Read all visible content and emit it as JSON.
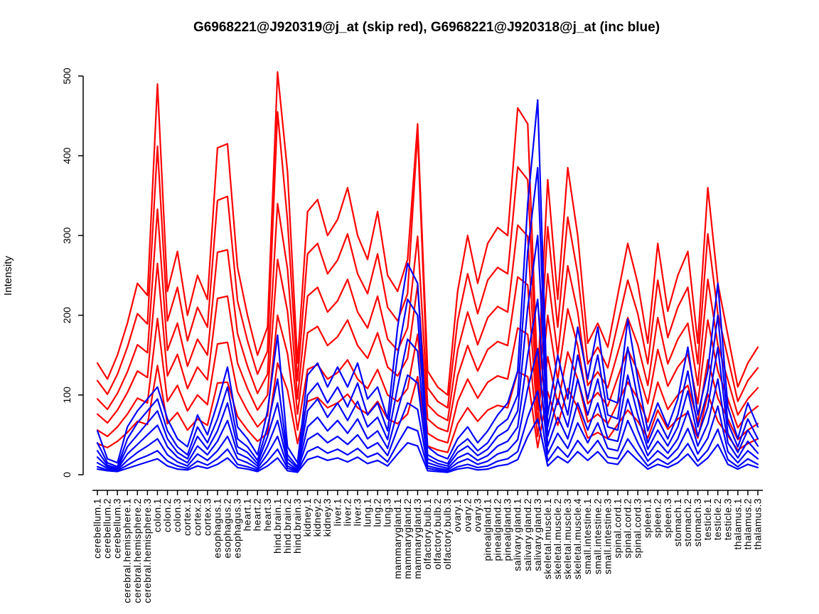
{
  "page": {
    "background": "#ffffff"
  },
  "chart_data": {
    "type": "line",
    "title": "G6968221@J920319@j_at (skip red), G6968221@J920318@j_at (inc blue)",
    "xlabel": "",
    "ylabel": "Intensity",
    "ylim": [
      0,
      500
    ],
    "yticks": [
      0,
      100,
      200,
      300,
      400,
      500
    ],
    "grid": false,
    "legend_position": "none",
    "series_colors": {
      "skip": "#ff0000",
      "inc": "#0000ff"
    },
    "categories": [
      "cerebellum.1",
      "cerebellum.2",
      "cerebellum.3",
      "cerebral.hemisphere.1",
      "cerebral.hemisphere.2",
      "cerebral.hemisphere.3",
      "colon.1",
      "colon.2",
      "colon.3",
      "cortex.1",
      "cortex.2",
      "cortex.3",
      "esophagus.1",
      "esophagus.2",
      "esophagus.3",
      "heart.1",
      "heart.2",
      "heart.3",
      "hind.brain.1",
      "hind.brain.2",
      "hind.brain.3",
      "kidney.1",
      "kidney.2",
      "kidney.3",
      "liver.1",
      "liver.2",
      "liver.3",
      "lung.1",
      "lung.2",
      "lung.3",
      "mammarygland.1",
      "mammarygland.2",
      "mammarygland.3",
      "olfactory.bulb.1",
      "olfactory.bulb.2",
      "olfactory.bulb.3",
      "ovary.1",
      "ovary.2",
      "ovary.3",
      "pinealgland.1",
      "pinealgland.2",
      "pinealgland.3",
      "salivary.gland.1",
      "salivary.gland.2",
      "salivary.gland.3",
      "skeletal.muscle.1",
      "skeletal.muscle.2",
      "skeletal.muscle.3",
      "skeletal.muscle.4",
      "small.intestine.1",
      "small.intestine.2",
      "small.intestine.3",
      "spinal.cord.1",
      "spinal.cord.2",
      "spinal.cord.3",
      "spleen.1",
      "spleen.2",
      "spleen.3",
      "stomach.1",
      "stomach.2",
      "stomach.3",
      "testicle.1",
      "testicle.2",
      "testicle.3",
      "thalamus.1",
      "thalamus.2",
      "thalamus.3"
    ],
    "series": [
      {
        "name": "skip-red-1",
        "group": "G6968221@J920319@j_at (skip)",
        "color": "#ff0000",
        "values": [
          140,
          120,
          150,
          190,
          240,
          225,
          490,
          230,
          280,
          200,
          250,
          220,
          410,
          415,
          260,
          200,
          150,
          185,
          505,
          380,
          140,
          330,
          345,
          300,
          320,
          360,
          300,
          270,
          330,
          250,
          230,
          270,
          440,
          130,
          110,
          100,
          230,
          300,
          240,
          290,
          310,
          300,
          460,
          440,
          120,
          370,
          220,
          385,
          300,
          165,
          190,
          160,
          225,
          290,
          240,
          165,
          290,
          205,
          250,
          280,
          165,
          360,
          240,
          175,
          110,
          140,
          160
        ]
      },
      {
        "name": "skip-red-2",
        "group": "G6968221@J920319@j_at (skip)",
        "color": "#ff0000",
        "values": [
          118,
          101,
          126,
          160,
          202,
          189,
          412,
          193,
          235,
          168,
          210,
          185,
          344,
          349,
          218,
          168,
          126,
          155,
          455,
          319,
          118,
          277,
          290,
          252,
          269,
          302,
          252,
          227,
          277,
          210,
          193,
          227,
          430,
          109,
          92,
          84,
          193,
          252,
          202,
          244,
          260,
          252,
          386,
          370,
          101,
          311,
          185,
          323,
          252,
          139,
          160,
          134,
          189,
          244,
          202,
          139,
          244,
          172,
          210,
          235,
          139,
          302,
          202,
          147,
          92,
          118,
          134
        ]
      },
      {
        "name": "skip-red-3",
        "group": "G6968221@J920319@j_at (skip)",
        "color": "#ff0000",
        "values": [
          95,
          82,
          102,
          129,
          163,
          153,
          333,
          156,
          190,
          136,
          170,
          150,
          279,
          282,
          177,
          136,
          102,
          126,
          340,
          258,
          95,
          224,
          235,
          204,
          218,
          245,
          204,
          184,
          224,
          170,
          156,
          184,
          299,
          88,
          75,
          68,
          156,
          204,
          163,
          197,
          211,
          204,
          313,
          299,
          82,
          252,
          150,
          262,
          204,
          112,
          129,
          109,
          153,
          197,
          163,
          112,
          197,
          139,
          170,
          190,
          112,
          245,
          163,
          119,
          75,
          95,
          109
        ]
      },
      {
        "name": "skip-red-4",
        "group": "G6968221@J920319@j_at (skip)",
        "color": "#ff0000",
        "values": [
          76,
          65,
          81,
          103,
          130,
          122,
          265,
          124,
          151,
          108,
          135,
          119,
          221,
          224,
          140,
          108,
          81,
          100,
          270,
          205,
          76,
          178,
          186,
          162,
          173,
          194,
          162,
          146,
          178,
          135,
          124,
          146,
          238,
          70,
          59,
          54,
          124,
          162,
          130,
          157,
          167,
          162,
          248,
          238,
          65,
          200,
          119,
          208,
          162,
          89,
          103,
          86,
          122,
          157,
          130,
          89,
          157,
          111,
          135,
          151,
          89,
          194,
          130,
          95,
          59,
          76,
          86
        ]
      },
      {
        "name": "skip-red-5",
        "group": "G6968221@J920319@j_at (skip)",
        "color": "#ff0000",
        "values": [
          56,
          48,
          60,
          76,
          96,
          90,
          196,
          92,
          112,
          80,
          100,
          88,
          164,
          166,
          104,
          80,
          60,
          74,
          200,
          152,
          56,
          132,
          138,
          120,
          128,
          144,
          120,
          108,
          132,
          100,
          92,
          108,
          176,
          52,
          44,
          40,
          92,
          120,
          96,
          116,
          124,
          120,
          184,
          176,
          48,
          148,
          88,
          154,
          120,
          66,
          76,
          64,
          90,
          116,
          96,
          66,
          116,
          82,
          100,
          112,
          66,
          144,
          96,
          70,
          44,
          56,
          64
        ]
      },
      {
        "name": "skip-red-6",
        "group": "G6968221@J920319@j_at (skip)",
        "color": "#ff0000",
        "values": [
          39,
          34,
          42,
          53,
          67,
          63,
          137,
          64,
          78,
          56,
          70,
          62,
          115,
          116,
          73,
          56,
          42,
          52,
          140,
          106,
          39,
          92,
          97,
          84,
          90,
          101,
          84,
          76,
          92,
          70,
          64,
          76,
          123,
          36,
          31,
          28,
          64,
          84,
          67,
          81,
          87,
          84,
          129,
          123,
          34,
          104,
          62,
          108,
          84,
          46,
          53,
          45,
          63,
          81,
          67,
          46,
          81,
          57,
          70,
          78,
          46,
          101,
          67,
          49,
          31,
          39,
          45
        ]
      },
      {
        "name": "inc-blue-1",
        "group": "G6968221@J920318@j_at (inc)",
        "color": "#0000ff",
        "values": [
          55,
          20,
          15,
          60,
          80,
          95,
          110,
          70,
          45,
          35,
          75,
          50,
          90,
          135,
          60,
          45,
          25,
          80,
          175,
          35,
          15,
          125,
          140,
          110,
          135,
          110,
          140,
          95,
          110,
          70,
          185,
          265,
          240,
          35,
          25,
          20,
          45,
          60,
          40,
          55,
          75,
          90,
          130,
          340,
          470,
          75,
          150,
          95,
          185,
          120,
          185,
          95,
          90,
          195,
          120,
          55,
          90,
          60,
          95,
          160,
          75,
          130,
          240,
          85,
          45,
          90,
          60
        ]
      },
      {
        "name": "inc-blue-2",
        "group": "G6968221@J920318@j_at (inc)",
        "color": "#0000ff",
        "values": [
          40,
          15,
          10,
          45,
          65,
          80,
          95,
          55,
          35,
          25,
          60,
          40,
          70,
          110,
          45,
          35,
          18,
          60,
          120,
          25,
          10,
          100,
          115,
          90,
          110,
          85,
          115,
          75,
          90,
          55,
          150,
          220,
          200,
          25,
          18,
          14,
          35,
          45,
          30,
          40,
          60,
          70,
          100,
          280,
          385,
          60,
          120,
          75,
          150,
          95,
          150,
          75,
          70,
          160,
          95,
          40,
          70,
          45,
          75,
          130,
          60,
          105,
          200,
          65,
          35,
          70,
          45
        ]
      },
      {
        "name": "inc-blue-3",
        "group": "G6968221@J920318@j_at (inc)",
        "color": "#0000ff",
        "values": [
          30,
          12,
          8,
          35,
          50,
          65,
          80,
          45,
          28,
          20,
          48,
          32,
          55,
          90,
          35,
          28,
          14,
          48,
          90,
          20,
          8,
          80,
          95,
          72,
          90,
          68,
          92,
          60,
          72,
          44,
          110,
          170,
          155,
          20,
          14,
          11,
          28,
          36,
          24,
          32,
          48,
          56,
          80,
          210,
          300,
          48,
          95,
          60,
          120,
          75,
          120,
          60,
          56,
          125,
          75,
          32,
          56,
          36,
          60,
          105,
          48,
          85,
          160,
          52,
          28,
          56,
          36
        ]
      },
      {
        "name": "inc-blue-4",
        "group": "G6968221@J920318@j_at (inc)",
        "color": "#0000ff",
        "values": [
          22,
          10,
          7,
          26,
          38,
          50,
          62,
          35,
          22,
          15,
          36,
          25,
          42,
          68,
          27,
          21,
          11,
          36,
          68,
          15,
          6,
          60,
          72,
          55,
          68,
          52,
          70,
          45,
          55,
          33,
          80,
          125,
          115,
          15,
          11,
          8,
          21,
          27,
          18,
          24,
          36,
          42,
          60,
          150,
          220,
          36,
          72,
          45,
          90,
          56,
          90,
          45,
          42,
          95,
          56,
          24,
          42,
          27,
          45,
          80,
          36,
          64,
          120,
          40,
          21,
          42,
          27
        ]
      },
      {
        "name": "inc-blue-5",
        "group": "G6968221@J920318@j_at (inc)",
        "color": "#0000ff",
        "values": [
          15,
          8,
          6,
          18,
          28,
          36,
          45,
          25,
          16,
          11,
          26,
          18,
          30,
          48,
          20,
          15,
          8,
          26,
          48,
          11,
          5,
          44,
          52,
          40,
          48,
          38,
          50,
          33,
          40,
          24,
          58,
          90,
          82,
          11,
          8,
          6,
          15,
          20,
          13,
          17,
          26,
          30,
          44,
          108,
          158,
          26,
          52,
          33,
          65,
          40,
          65,
          33,
          30,
          68,
          40,
          17,
          30,
          20,
          33,
          58,
          26,
          46,
          86,
          29,
          15,
          30,
          20
        ]
      },
      {
        "name": "inc-blue-6",
        "group": "G6968221@J920318@j_at (inc)",
        "color": "#0000ff",
        "values": [
          10,
          6,
          5,
          12,
          19,
          24,
          30,
          17,
          11,
          8,
          17,
          12,
          20,
          32,
          13,
          10,
          6,
          17,
          32,
          8,
          4,
          29,
          35,
          27,
          32,
          25,
          33,
          22,
          27,
          16,
          39,
          60,
          55,
          8,
          6,
          4,
          10,
          13,
          9,
          11,
          17,
          20,
          29,
          72,
          105,
          17,
          35,
          22,
          43,
          27,
          43,
          22,
          20,
          45,
          27,
          11,
          20,
          13,
          22,
          39,
          17,
          31,
          57,
          19,
          10,
          20,
          13
        ]
      },
      {
        "name": "inc-blue-7",
        "group": "G6968221@J920318@j_at (inc)",
        "color": "#0000ff",
        "values": [
          7,
          5,
          4,
          8,
          12,
          16,
          20,
          11,
          7,
          6,
          11,
          8,
          13,
          21,
          9,
          7,
          4,
          11,
          21,
          5,
          3,
          19,
          23,
          18,
          21,
          16,
          22,
          14,
          18,
          11,
          26,
          40,
          36,
          5,
          4,
          3,
          7,
          9,
          6,
          7,
          11,
          13,
          19,
          48,
          70,
          11,
          23,
          15,
          29,
          18,
          29,
          15,
          13,
          30,
          18,
          7,
          13,
          9,
          15,
          26,
          11,
          21,
          38,
          13,
          7,
          13,
          9
        ]
      }
    ]
  }
}
